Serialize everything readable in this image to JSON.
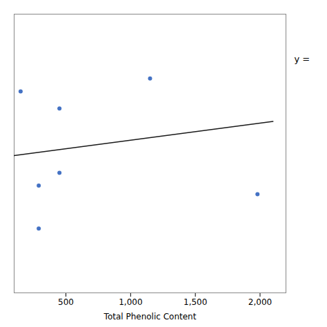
{
  "chart_data": {
    "type": "scatter",
    "xlabel": "Total Phenolic Content",
    "annotation": "y =",
    "xlim": [
      100,
      2200
    ],
    "ylim": [
      40,
      105
    ],
    "xticks": [
      500,
      1000,
      1500,
      2000
    ],
    "tick_labels": "x",
    "series": [
      {
        "type": "scatter",
        "color": "#4472c4",
        "marker": "circle",
        "x": [
          150,
          450,
          1150,
          290,
          450,
          290,
          1980
        ],
        "values": [
          87,
          83,
          90,
          65,
          68,
          55,
          63
        ]
      },
      {
        "type": "line",
        "color": "#1a1a1a",
        "line_style": "solid",
        "x": [
          100,
          2100
        ],
        "values": [
          72,
          80
        ]
      }
    ]
  }
}
